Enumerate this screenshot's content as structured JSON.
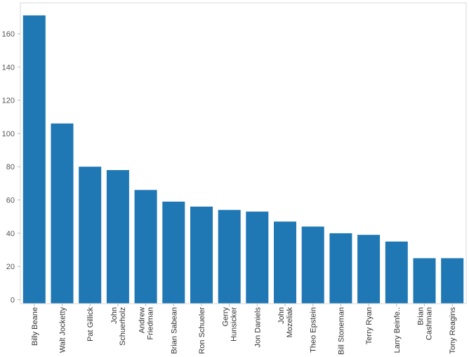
{
  "chart_data": {
    "type": "bar",
    "categories": [
      "Billy Beane",
      "Walt Jocketty",
      "Pat Gillick",
      "John Schuerholz",
      "Andrew Friedman",
      "Brian Sabean",
      "Ron Schueler",
      "Gerry Hunsicker",
      "Jon Daniels",
      "John Mozeliak",
      "Theo Epstein",
      "Bill Stoneman",
      "Terry Ryan",
      "Larry Beinfe..",
      "Brian Cashman",
      "Tony Reagins"
    ],
    "category_label_lines": [
      [
        "Billy Beane"
      ],
      [
        "Walt Jocketty"
      ],
      [
        "Pat Gillick"
      ],
      [
        "John",
        "Schuerholz"
      ],
      [
        "Andrew",
        "Friedman"
      ],
      [
        "Brian Sabean"
      ],
      [
        "Ron Schueler"
      ],
      [
        "Gerry",
        "Hunsicker"
      ],
      [
        "Jon Daniels"
      ],
      [
        "John",
        "Mozeliak"
      ],
      [
        "Theo Epstein"
      ],
      [
        "Bill Stoneman"
      ],
      [
        "Terry Ryan"
      ],
      [
        "Larry Beinfe.."
      ],
      [
        "Brian",
        "Cashman"
      ],
      [
        "Tony Reagins"
      ]
    ],
    "values": [
      171,
      106,
      80,
      78,
      66,
      59,
      56,
      54,
      53,
      47,
      44,
      40,
      39,
      35,
      25,
      25
    ],
    "ylim": [
      0,
      175
    ],
    "yticks": [
      0,
      20,
      40,
      60,
      80,
      100,
      120,
      140,
      160
    ],
    "title": "",
    "xlabel": "",
    "ylabel": "",
    "grid": false,
    "bar_color": "#1f77b4",
    "frame_color": "#d9d9d9"
  }
}
